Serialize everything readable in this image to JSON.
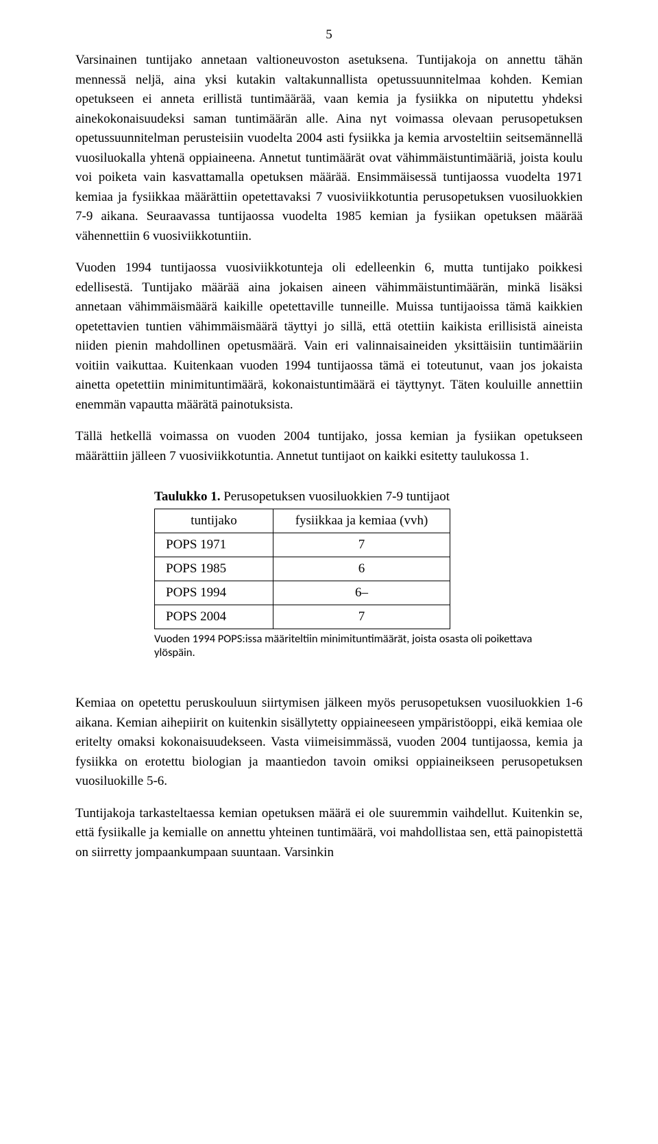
{
  "page_number": "5",
  "paragraphs": {
    "p1": "Varsinainen tuntijako annetaan valtioneuvoston asetuksena. Tuntijakoja on annettu tähän mennessä neljä, aina yksi kutakin valtakunnallista opetussuunnitelmaa kohden. Kemian opetukseen ei anneta erillistä tuntimäärää, vaan kemia ja fysiikka on niputettu yhdeksi ainekokonaisuudeksi saman tuntimäärän alle. Aina nyt voimassa olevaan perusopetuksen opetussuunnitelman perusteisiin vuodelta 2004 asti fysiikka ja kemia arvosteltiin seitsemännellä vuosiluokalla yhtenä oppiaineena. Annetut tuntimäärät ovat vähimmäistuntimääriä, joista koulu voi poiketa vain kasvattamalla opetuksen määrää. Ensimmäisessä tuntijaossa vuodelta 1971 kemiaa ja fysiikkaa määrättiin opetettavaksi 7 vuosiviikkotuntia perusopetuksen vuosiluokkien 7-9 aikana. Seuraavassa tuntijaossa vuodelta 1985 kemian ja fysiikan opetuksen määrää vähennettiin 6 vuosiviikkotuntiin.",
    "p2": "Vuoden 1994 tuntijaossa vuosiviikkotunteja oli edelleenkin 6, mutta tuntijako poikkesi edellisestä. Tuntijako määrää aina jokaisen aineen vähimmäistuntimäärän, minkä lisäksi annetaan vähimmäismäärä kaikille opetettaville tunneille. Muissa tuntijaoissa tämä kaikkien opetettavien tuntien vähimmäismäärä täyttyi jo sillä, että otettiin kaikista erillisistä aineista niiden pienin mahdollinen opetusmäärä. Vain eri valinnaisaineiden yksittäisiin tuntimääriin voitiin vaikuttaa. Kuitenkaan vuoden 1994 tuntijaossa tämä ei toteutunut, vaan jos jokaista ainetta opetettiin minimituntimäärä, kokonaistuntimäärä ei täyttynyt. Täten kouluille annettiin enemmän vapautta määrätä painotuksista.",
    "p3": "Tällä hetkellä voimassa on vuoden 2004 tuntijako, jossa kemian ja fysiikan opetukseen määrättiin jälleen 7 vuosiviikkotuntia. Annetut tuntijaot on kaikki esitetty taulukossa 1.",
    "p4": "Kemiaa on opetettu peruskouluun siirtymisen jälkeen myös perusopetuksen vuosiluokkien 1-6 aikana. Kemian aihepiirit on kuitenkin sisällytetty oppiaineeseen ympäristöoppi, eikä kemiaa ole eritelty omaksi kokonaisuudekseen. Vasta viimeisimmässä, vuoden 2004 tuntijaossa, kemia ja fysiikka on erotettu biologian ja maantiedon tavoin omiksi oppiaineikseen perusopetuksen vuosiluokille 5-6.",
    "p5": "Tuntijakoja tarkasteltaessa kemian opetuksen määrä ei ole suuremmin vaihdellut. Kuitenkin se, että fysiikalle ja kemialle on annettu yhteinen tuntimäärä, voi mahdollistaa sen, että painopistettä on siirretty jompaankumpaan suuntaan. Varsinkin"
  },
  "table": {
    "caption_prefix": "Taulukko 1.",
    "caption_text": " Perusopetuksen vuosiluokkien 7-9 tuntijaot",
    "header_left": "tuntijako",
    "header_right": "fysiikkaa ja kemiaa (vvh)",
    "rows": [
      {
        "label": "POPS 1971",
        "value": "7"
      },
      {
        "label": "POPS 1985",
        "value": "6"
      },
      {
        "label": "POPS 1994",
        "value": "6–"
      },
      {
        "label": "POPS 2004",
        "value": "7"
      }
    ],
    "note": "Vuoden 1994 POPS:issa määriteltiin minimituntimäärät, joista osasta oli poikettava ylöspäin."
  }
}
